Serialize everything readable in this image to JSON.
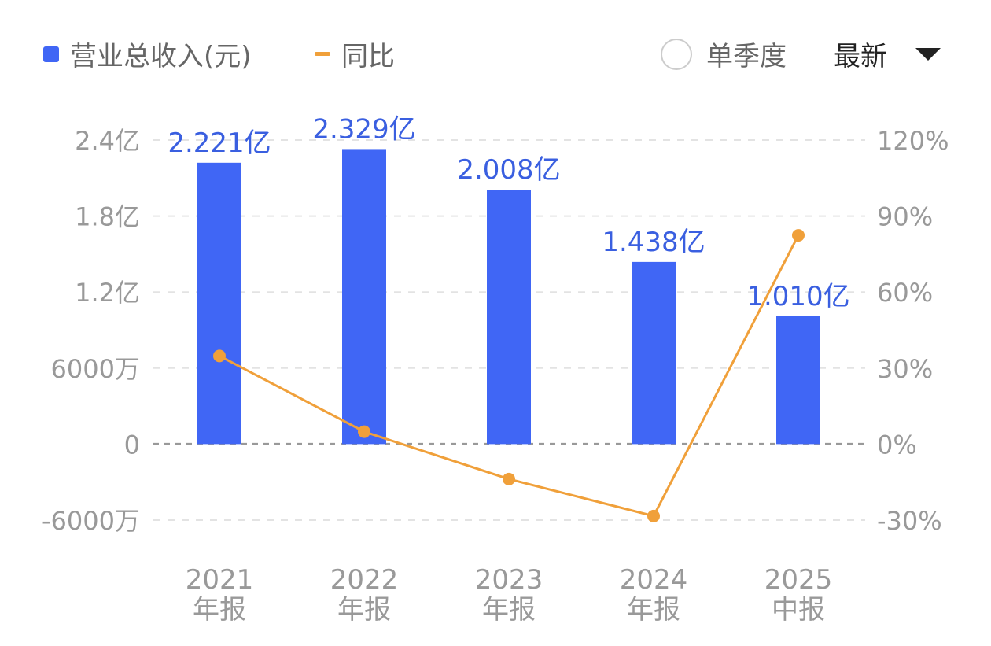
{
  "legend": {
    "revenue_label": "营业总收入(元)",
    "yoy_label": "同比",
    "single_quarter_label": "单季度",
    "period_select_label": "最新"
  },
  "colors": {
    "bar": "#4066f5",
    "line": "#f0a03a",
    "bar_label": "#3a5fe0",
    "axis_text": "#999999"
  },
  "chart_data": {
    "type": "bar",
    "categories": [
      [
        "2021",
        "年报"
      ],
      [
        "2022",
        "年报"
      ],
      [
        "2023",
        "年报"
      ],
      [
        "2024",
        "年报"
      ],
      [
        "2025",
        "中报"
      ]
    ],
    "series": [
      {
        "name": "营业总收入(元)",
        "type": "bar",
        "axis": "left",
        "values": [
          2.221,
          2.329,
          2.008,
          1.438,
          1.01
        ],
        "labels": [
          "2.221亿",
          "2.329亿",
          "2.008亿",
          "1.438亿",
          "1.010亿"
        ]
      },
      {
        "name": "同比",
        "type": "line",
        "axis": "right",
        "values": [
          34.8,
          4.9,
          -13.8,
          -28.4,
          82.4
        ]
      }
    ],
    "left_axis": {
      "unit": "亿",
      "ylim": [
        -0.6,
        2.4
      ],
      "ticks": [
        -0.6,
        0,
        0.6,
        1.2,
        1.8,
        2.4
      ],
      "tick_labels": [
        "-6000万",
        "0",
        "6000万",
        "1.2亿",
        "1.8亿",
        "2.4亿"
      ]
    },
    "right_axis": {
      "unit": "%",
      "ylim": [
        -30,
        120
      ],
      "ticks": [
        -30,
        0,
        30,
        60,
        90,
        120
      ],
      "tick_labels": [
        "-30%",
        "0%",
        "30%",
        "60%",
        "90%",
        "120%"
      ]
    },
    "grid": true,
    "legend_placement": "top"
  }
}
